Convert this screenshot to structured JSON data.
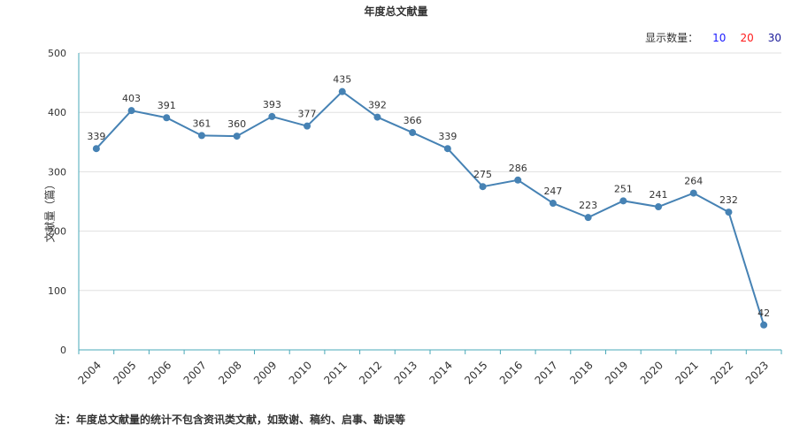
{
  "chart_data": {
    "type": "line",
    "title": "年度总文献量",
    "xlabel": "",
    "ylabel": "文献量（篇）",
    "ylim": [
      0,
      500
    ],
    "yticks": [
      0,
      100,
      200,
      300,
      400,
      500
    ],
    "categories": [
      "2004",
      "2005",
      "2006",
      "2007",
      "2008",
      "2009",
      "2010",
      "2011",
      "2012",
      "2013",
      "2014",
      "2015",
      "2016",
      "2017",
      "2018",
      "2019",
      "2020",
      "2021",
      "2022",
      "2023"
    ],
    "series": [
      {
        "values": [
          339,
          403,
          391,
          361,
          360,
          393,
          377,
          435,
          392,
          366,
          339,
          275,
          286,
          247,
          223,
          251,
          241,
          264,
          232,
          42
        ]
      }
    ],
    "grid": true,
    "line_color": "#4682b4"
  },
  "controls": {
    "label": "显示数量：",
    "options": [
      {
        "label": "10",
        "color": "#1a1aff"
      },
      {
        "label": "20",
        "color": "#ff1a1a"
      },
      {
        "label": "30",
        "color": "#1a1a99"
      }
    ]
  },
  "note": "注：年度总文献量的统计不包含资讯类文献，如致谢、稿约、启事、勘误等"
}
